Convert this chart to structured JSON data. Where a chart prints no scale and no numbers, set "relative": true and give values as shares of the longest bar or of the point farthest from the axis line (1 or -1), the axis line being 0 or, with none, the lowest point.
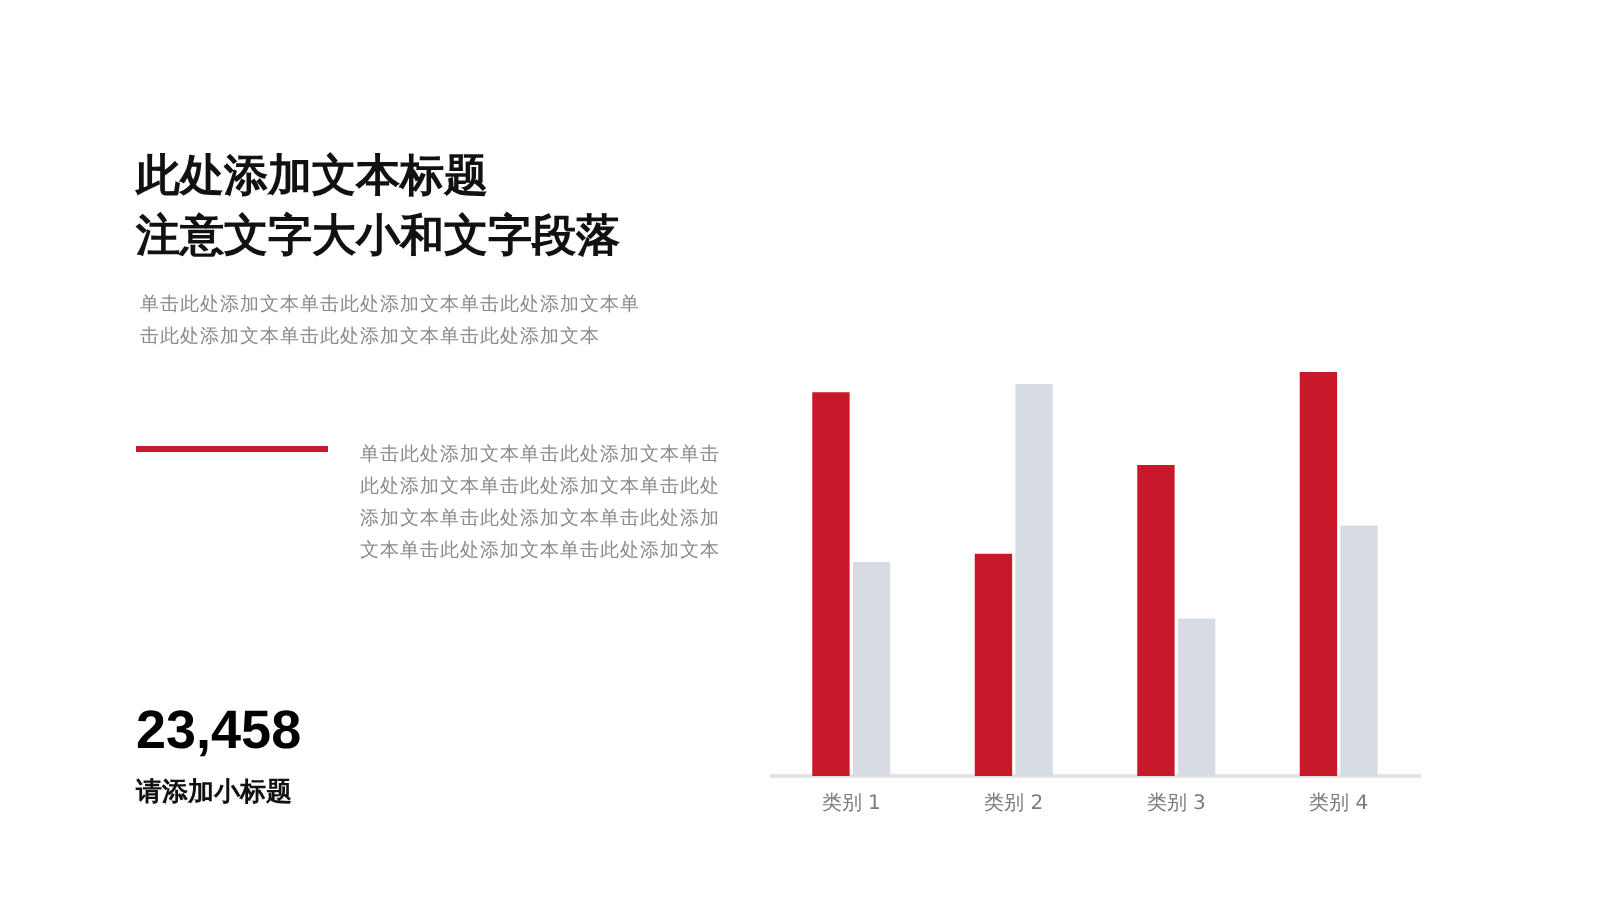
{
  "chart_data": {
    "type": "bar",
    "title": "此处添加文本标题",
    "subtitle": "注意文字大小和文字段落",
    "categories": [
      "类别 1",
      "类别 2",
      "类别 3",
      "类别 4"
    ],
    "relative": true,
    "series": [
      {
        "color": "#c8192a",
        "values": [
          0.95,
          0.55,
          0.77,
          1
        ]
      },
      {
        "color": "#d6dbe4",
        "values": [
          0.53,
          0.97,
          0.39,
          0.62
        ]
      }
    ],
    "annotations": [
      "单击此处添加文本单击此处添加文本单击此处添加文本单击此处添加文本单击此处添加文本单击此处添加文本",
      "单击此处添加文本单击此处添加文本单击此处添加文本单击此处添加文本单击此处添加文本单击此处添加文本单击此处添加文本单击此处添加文本单击此处添加文本",
      "23,458",
      "请添加小标题"
    ],
    "legend": false
  }
}
